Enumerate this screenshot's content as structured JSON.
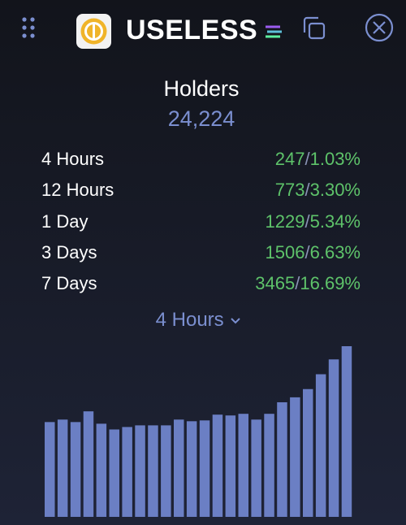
{
  "header": {
    "title": "USELESS"
  },
  "stats": {
    "title": "Holders",
    "total": "24,224",
    "rows": [
      {
        "label": "4 Hours",
        "count": "247",
        "percent": "1.03%"
      },
      {
        "label": "12 Hours",
        "count": "773",
        "percent": "3.30%"
      },
      {
        "label": "1 Day",
        "count": "1229",
        "percent": "5.34%"
      },
      {
        "label": "3 Days",
        "count": "1506",
        "percent": "6.63%"
      },
      {
        "label": "7 Days",
        "count": "3465",
        "percent": "16.69%"
      }
    ]
  },
  "selector": {
    "label": "4 Hours"
  },
  "chart_data": {
    "type": "bar",
    "color": "#6b7fc4",
    "values": [
      115,
      118,
      115,
      128,
      113,
      106,
      109,
      111,
      111,
      111,
      118,
      116,
      117,
      124,
      123,
      125,
      118,
      125,
      139,
      145,
      155,
      173,
      191,
      207
    ]
  }
}
